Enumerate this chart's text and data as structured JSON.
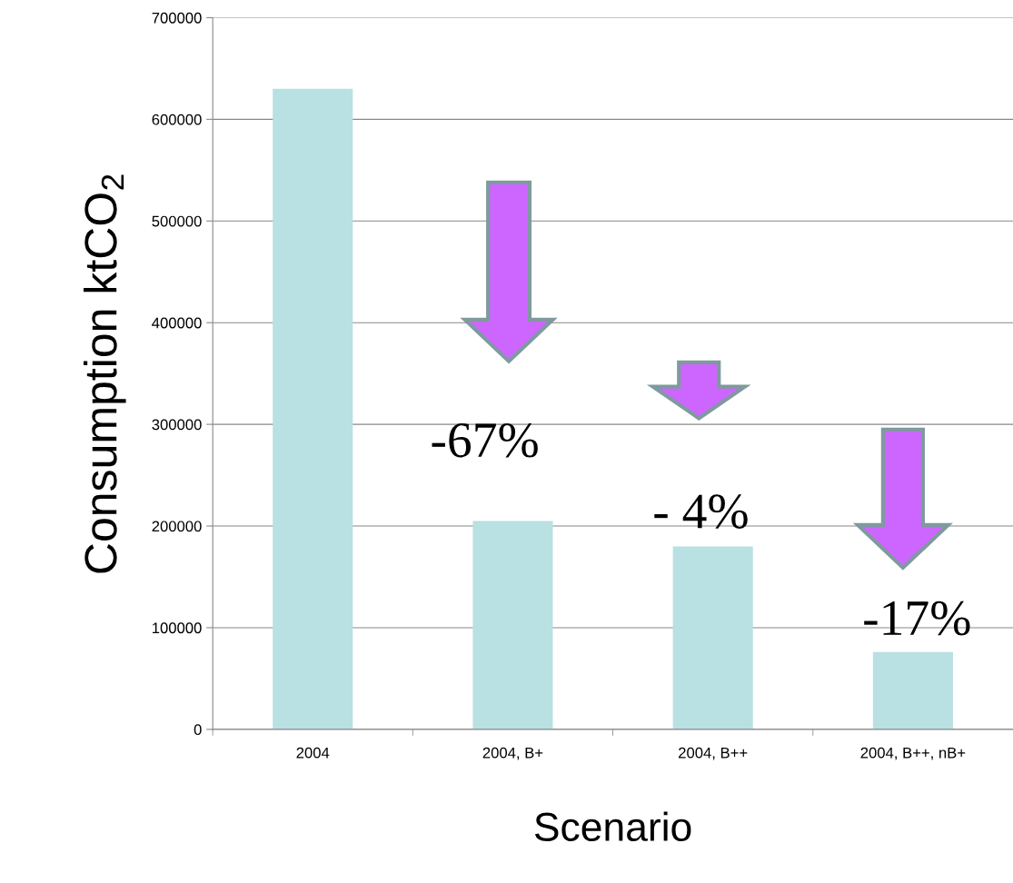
{
  "chart_data": {
    "type": "bar",
    "categories": [
      "2004",
      "2004, B+",
      "2004, B++",
      "2004, B++, nB+"
    ],
    "values": [
      630000,
      205000,
      180000,
      76000
    ],
    "color": "#b9e0e2",
    "xlabel": "Scenario",
    "ylabel": "Consumption ktCO$_{2}$",
    "ylim": [
      0,
      700000
    ],
    "yticks": [
      0,
      100000,
      200000,
      300000,
      400000,
      500000,
      600000,
      700000
    ],
    "grid": "y",
    "annotations": [
      "-67%",
      "- 4%",
      "-17%"
    ]
  }
}
